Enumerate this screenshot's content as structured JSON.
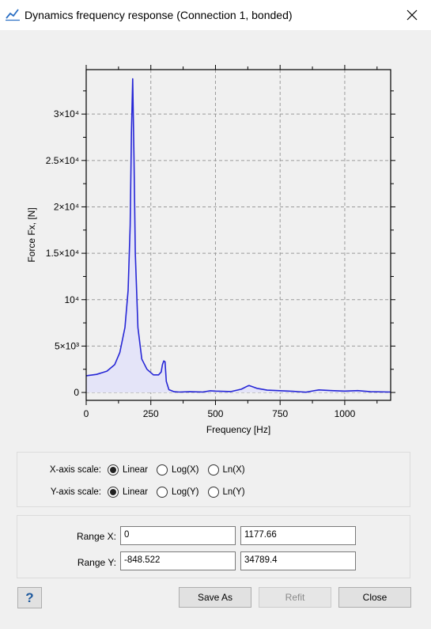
{
  "window": {
    "title": "Dynamics frequency response  (Connection 1, bonded)",
    "icon": "line-chart-icon",
    "close_icon": "close-icon"
  },
  "chart_data": {
    "type": "line",
    "xlabel": "Frequency [Hz]",
    "ylabel": "Force Fx, [N]",
    "xlim": [
      0,
      1177.66
    ],
    "ylim": [
      -848.522,
      34789.4
    ],
    "x_ticks": [
      {
        "value": 0,
        "label": "0"
      },
      {
        "value": 250,
        "label": "250"
      },
      {
        "value": 500,
        "label": "500"
      },
      {
        "value": 750,
        "label": "750"
      },
      {
        "value": 1000,
        "label": "1000"
      }
    ],
    "y_ticks": [
      {
        "value": 0,
        "label": "0"
      },
      {
        "value": 5000,
        "label": "5×10³"
      },
      {
        "value": 10000,
        "label": "10⁴"
      },
      {
        "value": 15000,
        "label": "1.5×10⁴"
      },
      {
        "value": 20000,
        "label": "2×10⁴"
      },
      {
        "value": 25000,
        "label": "2.5×10⁴"
      },
      {
        "value": 30000,
        "label": "3×10⁴"
      }
    ],
    "grid": true,
    "fill_under": true,
    "series": [
      {
        "color": "#2626d6",
        "fill": "#e4e4f8",
        "x": [
          0,
          40,
          80,
          110,
          130,
          150,
          162,
          170,
          175,
          180,
          185,
          190,
          200,
          215,
          235,
          260,
          280,
          290,
          295,
          300,
          305,
          310,
          320,
          340,
          360,
          400,
          450,
          480,
          500,
          560,
          600,
          625,
          630,
          660,
          700,
          800,
          850,
          880,
          900,
          950,
          1000,
          1050,
          1100,
          1177
        ],
        "y": [
          1800,
          1950,
          2300,
          3000,
          4300,
          7000,
          11000,
          18000,
          28000,
          33800,
          25000,
          15000,
          7000,
          3600,
          2500,
          1900,
          1900,
          2200,
          3000,
          3400,
          3300,
          1200,
          300,
          80,
          50,
          80,
          50,
          180,
          150,
          100,
          350,
          700,
          750,
          450,
          250,
          120,
          30,
          180,
          280,
          200,
          150,
          200,
          80,
          50
        ]
      }
    ]
  },
  "x_scale": {
    "label": "X-axis scale:",
    "options": [
      "Linear",
      "Log(X)",
      "Ln(X)"
    ],
    "selected": 0
  },
  "y_scale": {
    "label": "Y-axis scale:",
    "options": [
      "Linear",
      "Log(Y)",
      "Ln(Y)"
    ],
    "selected": 0
  },
  "range": {
    "x_label": "Range X:",
    "x_min": "0",
    "x_max": "1177.66",
    "y_label": "Range Y:",
    "y_min": "-848.522",
    "y_max": "34789.4"
  },
  "buttons": {
    "help": "?",
    "save_as": "Save As",
    "refit": "Refit",
    "close": "Close"
  }
}
